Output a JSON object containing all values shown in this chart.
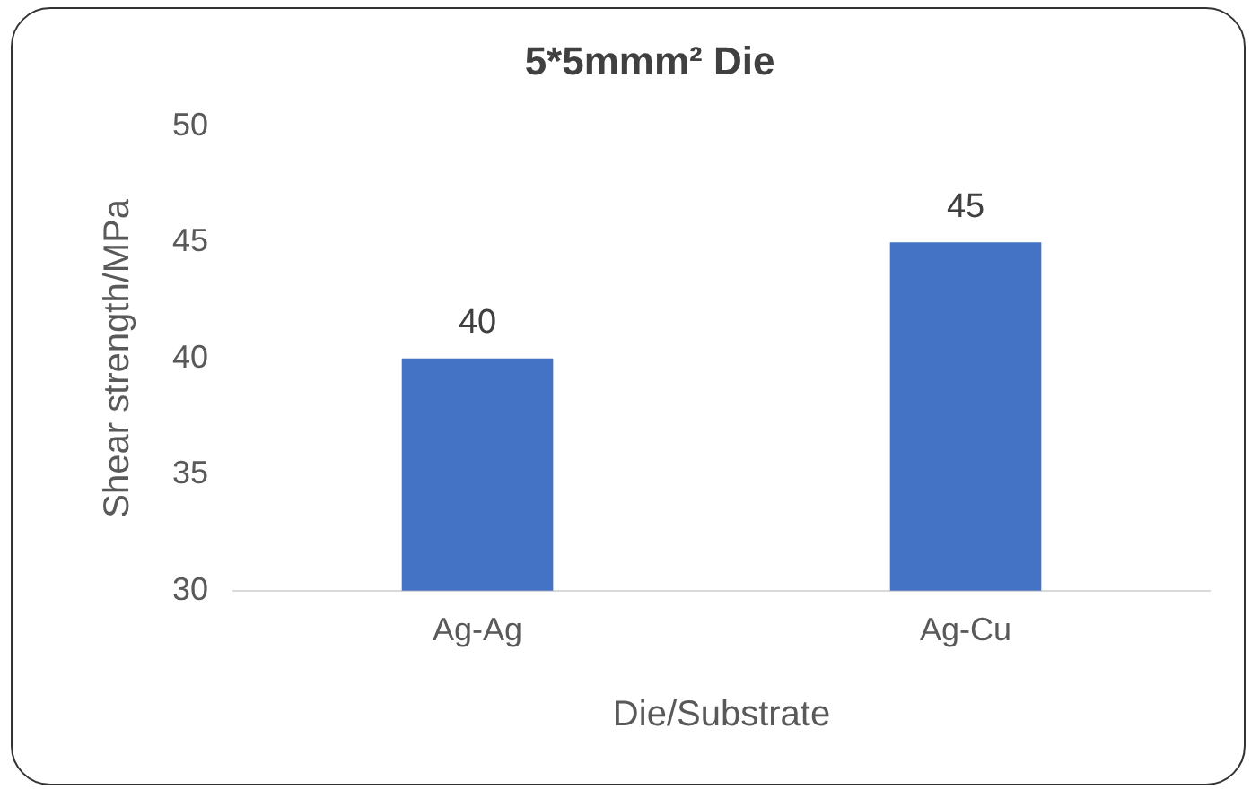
{
  "chart_data": {
    "type": "bar",
    "title": "5*5mmm² Die",
    "xlabel": "Die/Substrate",
    "ylabel": "Shear strength/MPa",
    "categories": [
      "Ag-Ag",
      "Ag-Cu"
    ],
    "values": [
      40,
      45
    ],
    "color": "#4472c4",
    "ylim": [
      30,
      50
    ],
    "yticks": [
      30,
      35,
      40,
      45,
      50
    ],
    "grid": false,
    "legend": false,
    "data_labels": true
  }
}
